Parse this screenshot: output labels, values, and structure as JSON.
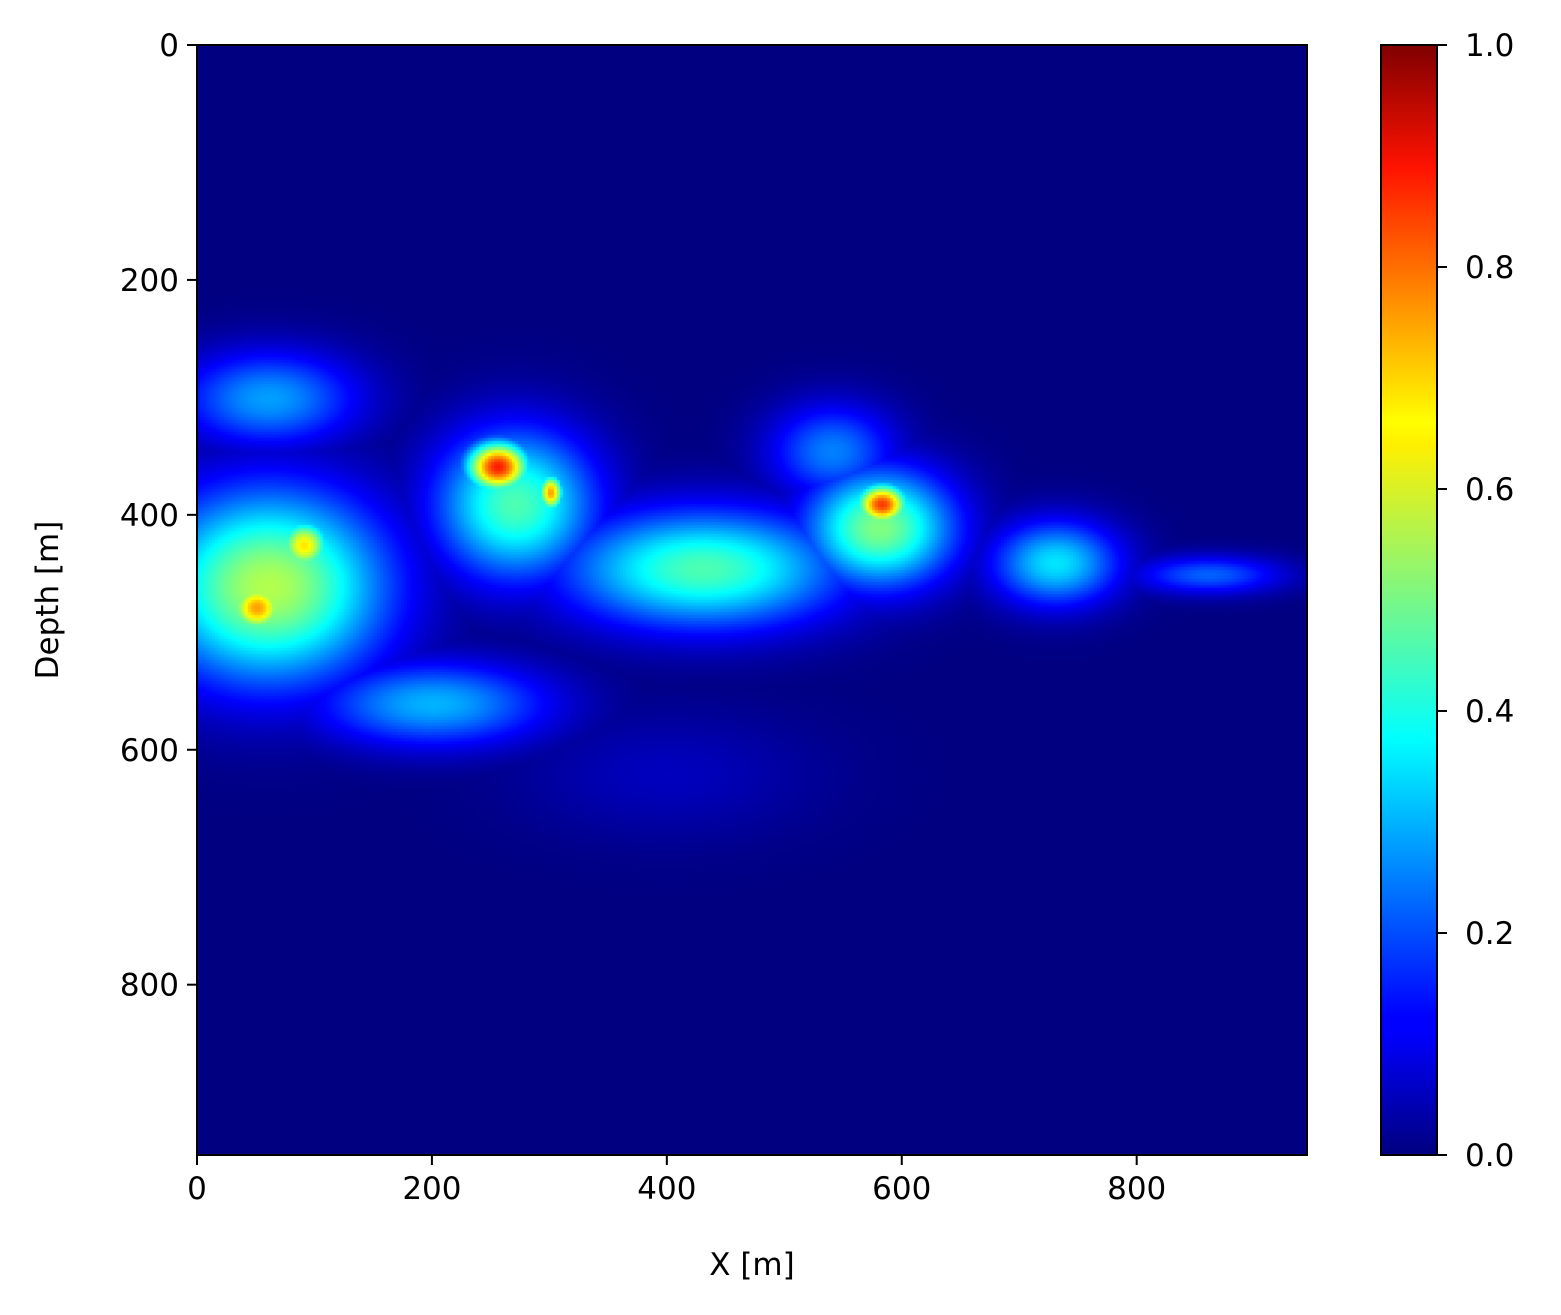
{
  "chart_data": {
    "type": "heatmap",
    "title": "",
    "xlabel": "X [m]",
    "ylabel": "Depth [m]",
    "xlim": [
      0,
      945
    ],
    "ylim": [
      945,
      0
    ],
    "x_ticks": [
      0,
      200,
      400,
      600,
      800
    ],
    "x_tick_labels": [
      "0",
      "200",
      "400",
      "600",
      "800"
    ],
    "y_ticks": [
      0,
      200,
      400,
      600,
      800
    ],
    "y_tick_labels": [
      "0",
      "200",
      "400",
      "600",
      "800"
    ],
    "colormap": "jet",
    "colorbar": {
      "range": [
        0.0,
        1.0
      ],
      "ticks": [
        0.0,
        0.2,
        0.4,
        0.6,
        0.8,
        1.0
      ],
      "tick_labels": [
        "0.0",
        "0.2",
        "0.4",
        "0.6",
        "0.8",
        "1.0"
      ],
      "placement": "right"
    },
    "grid": false,
    "background_value": 0.0,
    "features": [
      {
        "x": 60,
        "z": 300,
        "sx": 85,
        "sz": 45,
        "value": 0.28
      },
      {
        "x": 60,
        "z": 460,
        "sx": 110,
        "sz": 90,
        "value": 0.55
      },
      {
        "x": 90,
        "z": 425,
        "sx": 25,
        "sz": 25,
        "value": 0.65
      },
      {
        "x": 50,
        "z": 478,
        "sx": 28,
        "sz": 25,
        "value": 0.72
      },
      {
        "x": 270,
        "z": 390,
        "sx": 75,
        "sz": 70,
        "value": 0.45
      },
      {
        "x": 255,
        "z": 358,
        "sx": 30,
        "sz": 24,
        "value": 0.85
      },
      {
        "x": 300,
        "z": 380,
        "sx": 12,
        "sz": 18,
        "value": 0.72
      },
      {
        "x": 430,
        "z": 445,
        "sx": 130,
        "sz": 55,
        "value": 0.45
      },
      {
        "x": 580,
        "z": 410,
        "sx": 70,
        "sz": 55,
        "value": 0.5
      },
      {
        "x": 582,
        "z": 390,
        "sx": 25,
        "sz": 20,
        "value": 0.82
      },
      {
        "x": 730,
        "z": 440,
        "sx": 60,
        "sz": 40,
        "value": 0.35
      },
      {
        "x": 860,
        "z": 450,
        "sx": 70,
        "sz": 18,
        "value": 0.22
      },
      {
        "x": 200,
        "z": 560,
        "sx": 110,
        "sz": 40,
        "value": 0.3
      },
      {
        "x": 400,
        "z": 620,
        "sx": 140,
        "sz": 60,
        "value": 0.06
      },
      {
        "x": 540,
        "z": 345,
        "sx": 60,
        "sz": 45,
        "value": 0.25
      }
    ]
  }
}
